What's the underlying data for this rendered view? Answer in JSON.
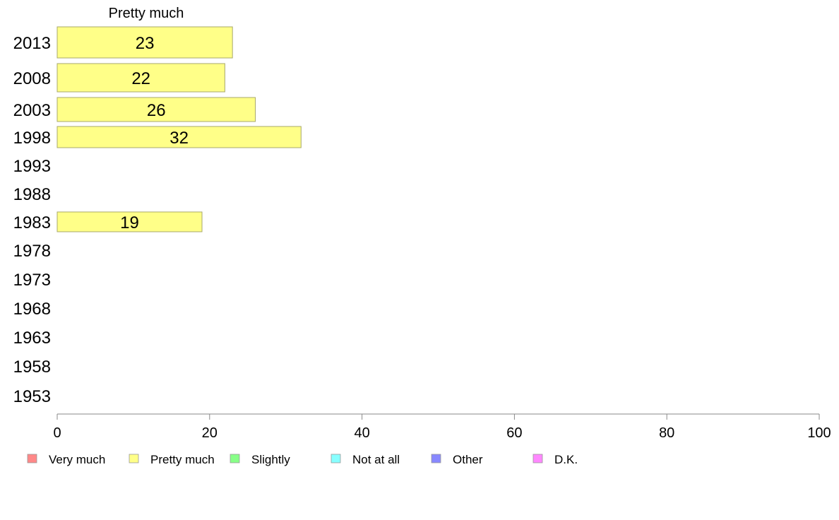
{
  "chart_data": {
    "type": "bar",
    "orientation": "horizontal",
    "series_title": "Pretty much",
    "categories": [
      "2013",
      "2008",
      "2003",
      "1998",
      "1993",
      "1988",
      "1983",
      "1978",
      "1973",
      "1968",
      "1963",
      "1958",
      "1953"
    ],
    "series": [
      {
        "name": "Pretty much",
        "color": "#ffff88",
        "values": [
          23,
          22,
          26,
          32,
          null,
          null,
          19,
          null,
          null,
          null,
          null,
          null,
          null
        ]
      }
    ],
    "xlim": [
      0,
      100
    ],
    "xticks": [
      0,
      20,
      40,
      60,
      80,
      100
    ],
    "grid": false,
    "legend": {
      "placement": "bottom",
      "items": [
        {
          "label": "Very much",
          "color": "#ff8888"
        },
        {
          "label": "Pretty much",
          "color": "#ffff88"
        },
        {
          "label": "Slightly",
          "color": "#88ff88"
        },
        {
          "label": "Not at all",
          "color": "#88ffff"
        },
        {
          "label": "Other",
          "color": "#8888ff"
        },
        {
          "label": "D.K.",
          "color": "#ff88ff"
        }
      ]
    }
  }
}
